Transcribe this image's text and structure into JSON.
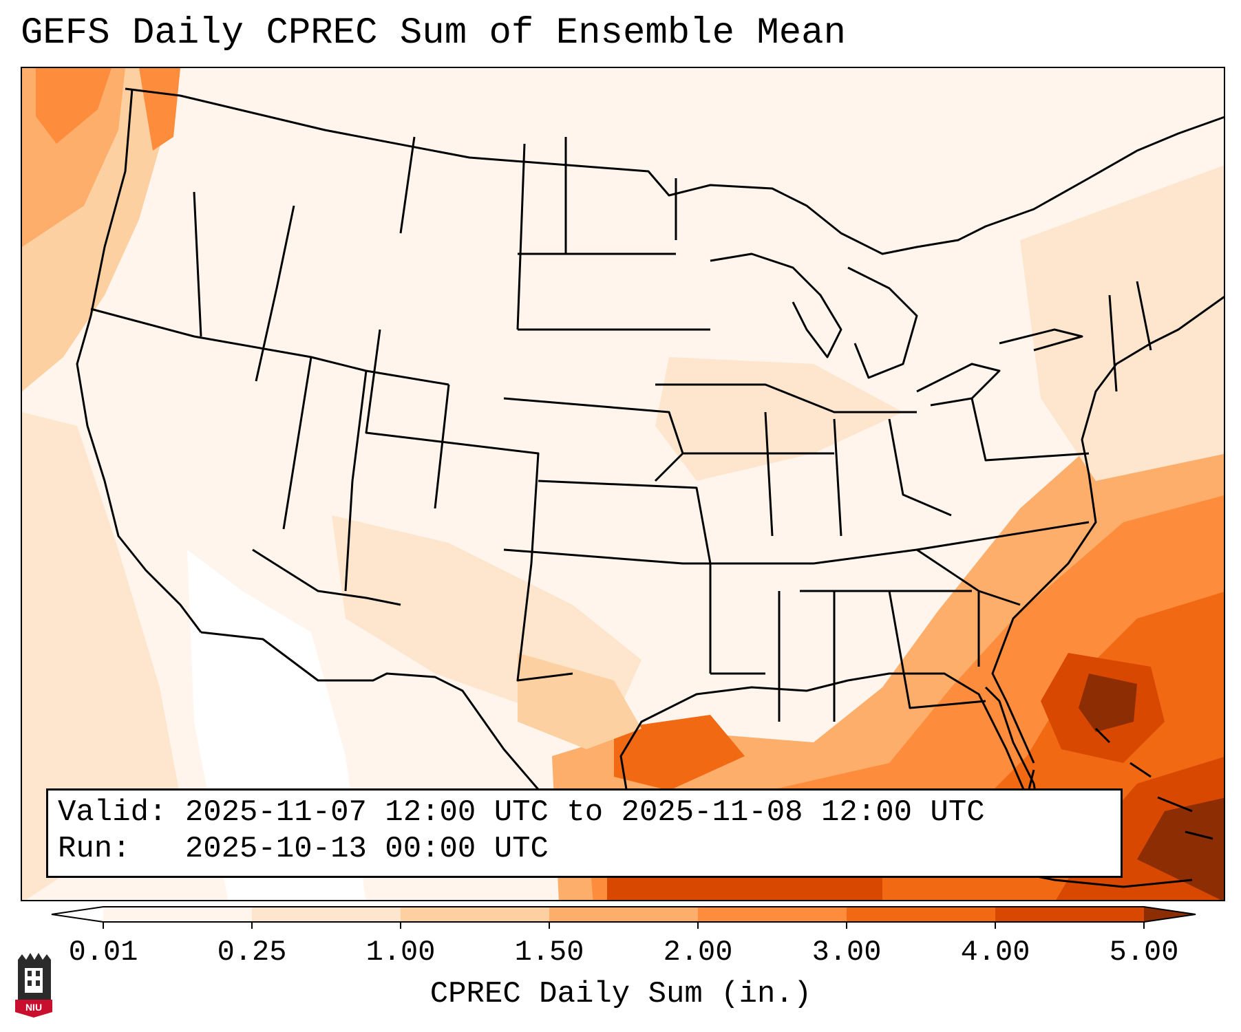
{
  "title": "GEFS Daily CPREC Sum of Ensemble Mean",
  "info": {
    "valid_label": "Valid:",
    "valid_value": "2025-11-07 12:00 UTC to 2025-11-08 12:00 UTC",
    "run_label": "Run:",
    "run_value": "2025-10-13 00:00 UTC"
  },
  "colorbar": {
    "label": "CPREC Daily Sum (in.)",
    "ticks": [
      "0.01",
      "0.25",
      "1.00",
      "1.50",
      "2.00",
      "3.00",
      "4.00",
      "5.00"
    ],
    "colors": [
      "#fff5ec",
      "#fee6ce",
      "#fdd0a2",
      "#fdae6b",
      "#fd8d3c",
      "#f16913",
      "#d94801",
      "#8c2d04"
    ],
    "extend": "both"
  },
  "logo": {
    "text": "NIU",
    "color": "#c8102e"
  },
  "map": {
    "region": "Contiguous United States",
    "land_color": "#fff5ec",
    "boundary_color": "#000000"
  }
}
